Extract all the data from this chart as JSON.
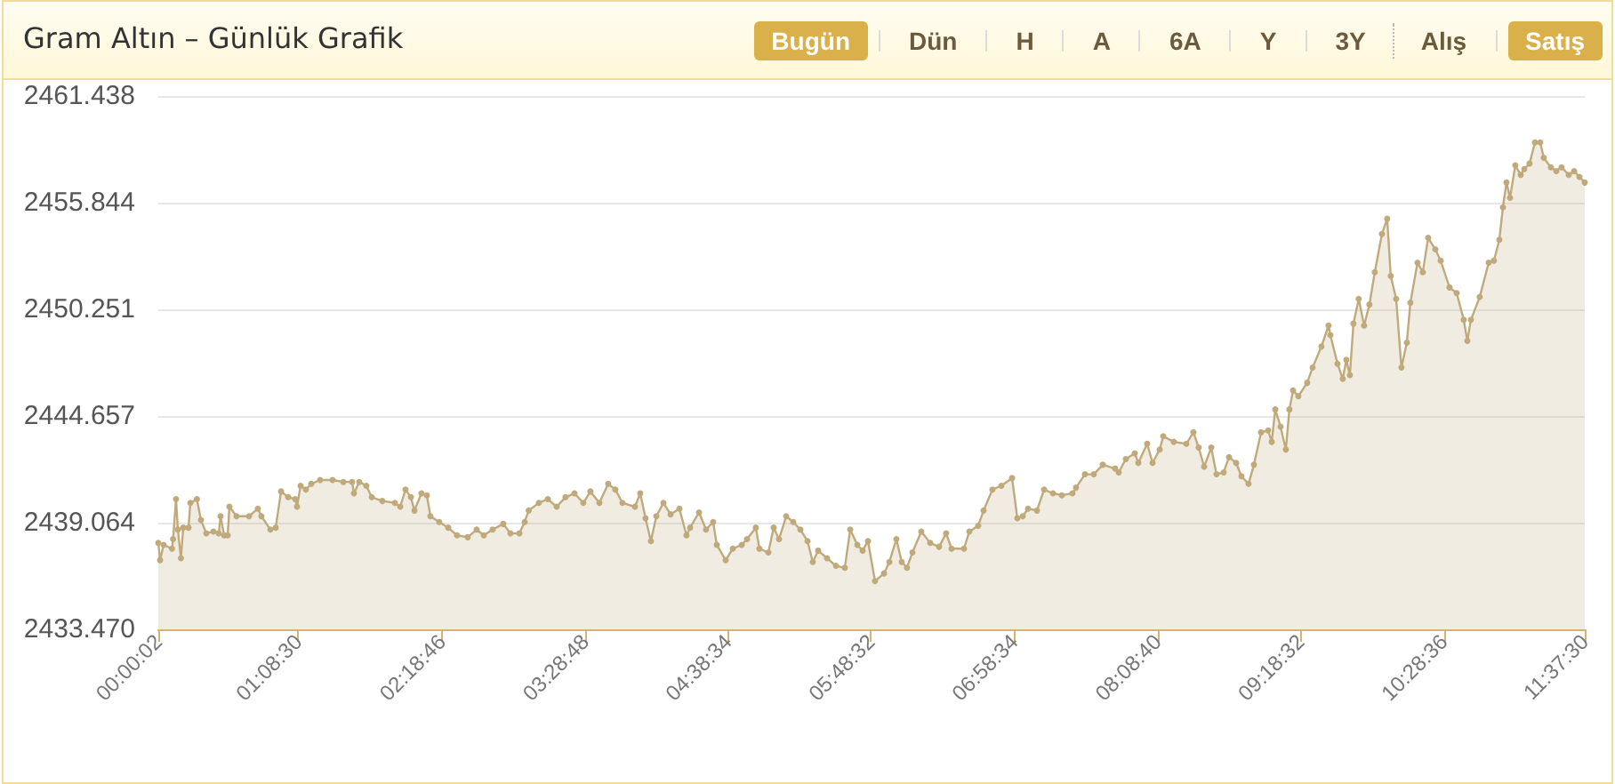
{
  "chart_data": {
    "type": "area",
    "title": "Gram Altın – Günlük Grafik",
    "annotations": [
      "Bugün",
      "Dün",
      "H",
      "A",
      "6A",
      "Y",
      "3Y",
      "Alış",
      "Satış"
    ],
    "x": [
      0.0006,
      0.015,
      0.044,
      0.112,
      0.121,
      0.145,
      0.16,
      0.185,
      0.204,
      0.247,
      0.262,
      0.315,
      0.348,
      0.392,
      0.45,
      0.493,
      0.508,
      0.537,
      0.566,
      0.58,
      0.638,
      0.74,
      0.812,
      0.841,
      0.914,
      0.957,
      1.001,
      1.059,
      1.117,
      1.131,
      1.16,
      1.203,
      1.247,
      1.319,
      1.421,
      1.508,
      1.58,
      1.595,
      1.638,
      1.696,
      1.74,
      1.826,
      1.928,
      1.972,
      2.015,
      2.059,
      2.088,
      2.145,
      2.189,
      2.218,
      2.29,
      2.363,
      2.435,
      2.522,
      2.595,
      2.653,
      2.725,
      2.812,
      2.87,
      2.943,
      2.986,
      3.019,
      3.102,
      3.175,
      3.247,
      3.319,
      3.392,
      3.464,
      3.522,
      3.595,
      3.667,
      3.725,
      3.783,
      3.885,
      3.928,
      3.971,
      4.015,
      4.059,
      4.117,
      4.175,
      4.247,
      4.305,
      4.334,
      4.407,
      4.464,
      4.522,
      4.552,
      4.624,
      4.682,
      4.755,
      4.798,
      4.87,
      4.899,
      4.972,
      5.015,
      5.059,
      5.117,
      5.175,
      5.233,
      5.291,
      5.334,
      5.378,
      5.45,
      5.523,
      5.595,
      5.639,
      5.697,
      5.74,
      5.784,
      5.841,
      5.914,
      5.958,
      6.015,
      6.059,
      6.102,
      6.146,
      6.218,
      6.291,
      6.363,
      6.421,
      6.465,
      6.566,
      6.61,
      6.682,
      6.726,
      6.798,
      6.871,
      6.958,
      7.001,
      7.045,
      7.088,
      7.161,
      7.219,
      7.291,
      7.364,
      7.45,
      7.479,
      7.552,
      7.624,
      7.697,
      7.798,
      7.827,
      7.885,
      7.958,
      7.987,
      8.059,
      8.103,
      8.161,
      8.19,
      8.276,
      8.378,
      8.436,
      8.479,
      8.523,
      8.581,
      8.624,
      8.682,
      8.726,
      8.784,
      8.827,
      8.885,
      8.929,
      8.987,
      9.045,
      9.074,
      9.103,
      9.146,
      9.189,
      9.218,
      9.248,
      9.291,
      9.363,
      9.407,
      9.479,
      9.537,
      9.552,
      9.61,
      9.653,
      9.682,
      9.711,
      9.74,
      9.783,
      9.827,
      9.87,
      9.914,
      9.972,
      10.015,
      10.044,
      10.088,
      10.131,
      10.175,
      10.204,
      10.262,
      10.305,
      10.349,
      10.407,
      10.451,
      10.523,
      10.581,
      10.639,
      10.668,
      10.697,
      10.769,
      10.842,
      10.885,
      10.929,
      10.958,
      10.987,
      11.016,
      11.059,
      11.103,
      11.132,
      11.175,
      11.219,
      11.262,
      11.291,
      11.349,
      11.393,
      11.436,
      11.494,
      11.538,
      11.581,
      11.625
    ],
    "values": [
      2438.0,
      2437.1,
      2437.9,
      2437.7,
      2438.2,
      2440.3,
      2438.7,
      2437.2,
      2438.8,
      2438.8,
      2440.1,
      2440.3,
      2439.2,
      2438.5,
      2438.6,
      2438.5,
      2439.4,
      2438.4,
      2438.4,
      2439.9,
      2439.4,
      2439.4,
      2439.8,
      2439.4,
      2438.7,
      2438.8,
      2440.7,
      2440.4,
      2440.3,
      2439.9,
      2441.0,
      2440.8,
      2441.1,
      2441.3,
      2441.3,
      2441.2,
      2441.2,
      2440.6,
      2441.2,
      2441.0,
      2440.4,
      2440.2,
      2440.1,
      2439.9,
      2440.8,
      2440.4,
      2439.7,
      2440.6,
      2440.5,
      2439.4,
      2439.1,
      2438.8,
      2438.4,
      2438.3,
      2438.7,
      2438.4,
      2438.7,
      2439.0,
      2438.5,
      2438.5,
      2439.1,
      2439.7,
      2440.1,
      2440.3,
      2439.9,
      2440.4,
      2440.6,
      2440.1,
      2440.7,
      2440.1,
      2441.1,
      2440.8,
      2440.1,
      2439.9,
      2440.6,
      2439.3,
      2438.1,
      2439.4,
      2440.1,
      2439.5,
      2439.8,
      2438.4,
      2438.8,
      2439.6,
      2438.7,
      2439.1,
      2437.9,
      2437.1,
      2437.7,
      2437.9,
      2438.2,
      2438.8,
      2437.7,
      2437.5,
      2438.8,
      2438.2,
      2439.4,
      2439.1,
      2438.7,
      2438.1,
      2437.0,
      2437.6,
      2437.2,
      2436.8,
      2436.7,
      2438.7,
      2437.9,
      2437.6,
      2438.1,
      2436.0,
      2436.4,
      2437.0,
      2438.2,
      2437.0,
      2436.7,
      2437.5,
      2438.6,
      2438.0,
      2437.8,
      2438.5,
      2437.7,
      2437.7,
      2438.6,
      2438.9,
      2439.7,
      2440.8,
      2441.0,
      2441.4,
      2439.3,
      2439.4,
      2439.8,
      2439.7,
      2440.8,
      2440.6,
      2440.5,
      2440.6,
      2440.9,
      2441.6,
      2441.6,
      2442.1,
      2441.9,
      2441.7,
      2442.4,
      2442.7,
      2442.2,
      2443.2,
      2442.2,
      2442.9,
      2443.6,
      2443.3,
      2443.2,
      2443.8,
      2443.0,
      2442.0,
      2443.0,
      2441.6,
      2441.7,
      2442.5,
      2442.2,
      2441.5,
      2441.1,
      2442.1,
      2443.8,
      2443.9,
      2443.3,
      2445.0,
      2444.1,
      2442.9,
      2445.0,
      2446.0,
      2445.7,
      2446.4,
      2447.2,
      2448.3,
      2449.4,
      2448.9,
      2447.4,
      2446.6,
      2447.6,
      2446.8,
      2449.5,
      2450.8,
      2449.4,
      2450.5,
      2452.2,
      2454.2,
      2455.0,
      2452.0,
      2450.8,
      2447.2,
      2448.5,
      2450.6,
      2452.7,
      2452.2,
      2454.0,
      2453.4,
      2452.8,
      2451.4,
      2451.1,
      2449.7,
      2448.6,
      2449.7,
      2450.9,
      2452.7,
      2452.8,
      2453.9,
      2455.6,
      2456.9,
      2456.1,
      2457.8,
      2457.3,
      2457.6,
      2457.9,
      2459.0,
      2459.0,
      2458.2,
      2457.7,
      2457.5,
      2457.7,
      2457.3,
      2457.5,
      2457.2,
      2456.9
    ],
    "color": "#c0aa7c",
    "marker": "circle",
    "grid": "y",
    "xlim": [
      0.000556,
      11.625
    ],
    "xticks": [
      {
        "value": 0.000556,
        "label": "00:00:02"
      },
      {
        "value": 1.141667,
        "label": "01:08:30"
      },
      {
        "value": 2.312778,
        "label": "02:18:46"
      },
      {
        "value": 3.48,
        "label": "03:28:48"
      },
      {
        "value": 4.642778,
        "label": "04:38:34"
      },
      {
        "value": 5.808889,
        "label": "05:48:32"
      },
      {
        "value": 6.976111,
        "label": "06:58:34"
      },
      {
        "value": 8.144444,
        "label": "08:08:40"
      },
      {
        "value": 9.308889,
        "label": "09:18:32"
      },
      {
        "value": 10.476667,
        "label": "10:28:36"
      },
      {
        "value": 11.625,
        "label": "11:37:30"
      }
    ],
    "ylim": [
      2433.47,
      2461.438
    ],
    "yticks": [
      {
        "value": 2433.47,
        "label": "2433.470"
      },
      2439.064,
      2444.657,
      2450.251,
      2455.844,
      2461.438
    ]
  }
}
